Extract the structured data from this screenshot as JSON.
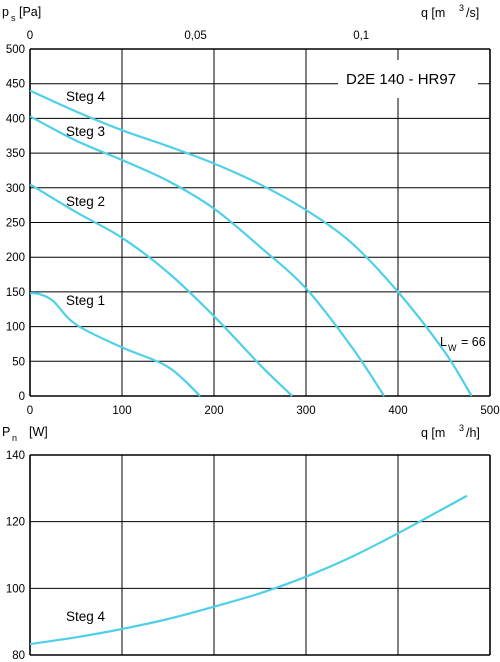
{
  "colors": {
    "curve": "#4fd0e8",
    "grid": "#000000",
    "background": "#ffffff"
  },
  "charts": {
    "pressure": {
      "y_symbol": "p",
      "y_sub": "s",
      "y_unit": "[Pa]",
      "x_top_label": "q [m",
      "x_top_sup": "3",
      "x_top_unit": "/s]",
      "x_bottom_label": "q [m",
      "x_bottom_sup": "3",
      "x_bottom_unit": "/h]",
      "model": "D2E 140 - HR97",
      "lw_symbol": "L",
      "lw_sub": "W",
      "lw_value": "= 66"
    },
    "power": {
      "y_symbol": "P",
      "y_sub": "n",
      "y_unit": "[W]"
    }
  },
  "chart_data": [
    {
      "type": "line",
      "xlim": [
        0,
        500
      ],
      "ylim": [
        0,
        500
      ],
      "x_ticks": [
        "0",
        "100",
        "200",
        "300",
        "400",
        "500"
      ],
      "y_ticks": [
        "0",
        "50",
        "100",
        "150",
        "200",
        "250",
        "300",
        "350",
        "400",
        "450",
        "500"
      ],
      "x_top_ticks": [
        {
          "value": 0,
          "label": "0"
        },
        {
          "value": 180,
          "label": "0,05"
        },
        {
          "value": 360,
          "label": "0,1"
        }
      ],
      "grid": true,
      "series": [
        {
          "name": "Steg 4",
          "x": [
            0,
            50,
            100,
            150,
            200,
            250,
            300,
            350,
            400,
            450,
            480
          ],
          "y": [
            440,
            410,
            383,
            360,
            335,
            305,
            268,
            220,
            150,
            65,
            0
          ]
        },
        {
          "name": "Steg 3",
          "x": [
            0,
            50,
            100,
            150,
            200,
            250,
            300,
            350,
            385
          ],
          "y": [
            403,
            368,
            340,
            310,
            270,
            215,
            155,
            70,
            0
          ]
        },
        {
          "name": "Steg 2",
          "x": [
            0,
            50,
            100,
            150,
            200,
            250,
            285
          ],
          "y": [
            305,
            265,
            228,
            178,
            115,
            45,
            0
          ]
        },
        {
          "name": "Steg 1",
          "x": [
            0,
            10,
            25,
            50,
            100,
            150,
            185
          ],
          "y": [
            148,
            147,
            137,
            103,
            70,
            42,
            0
          ]
        }
      ],
      "annotations": [
        "D2E 140 - HR97",
        "L_W = 66"
      ]
    },
    {
      "type": "line",
      "xlim": [
        0,
        500
      ],
      "ylim": [
        80,
        140
      ],
      "y_ticks": [
        "80",
        "100",
        "120",
        "140"
      ],
      "grid": true,
      "series": [
        {
          "name": "Steg 4",
          "x": [
            0,
            50,
            100,
            150,
            200,
            250,
            300,
            350,
            400,
            450,
            475
          ],
          "y": [
            83.3,
            85.3,
            87.8,
            90.8,
            94.5,
            98.5,
            103.5,
            109.5,
            116.5,
            124,
            127.8
          ]
        }
      ]
    }
  ]
}
